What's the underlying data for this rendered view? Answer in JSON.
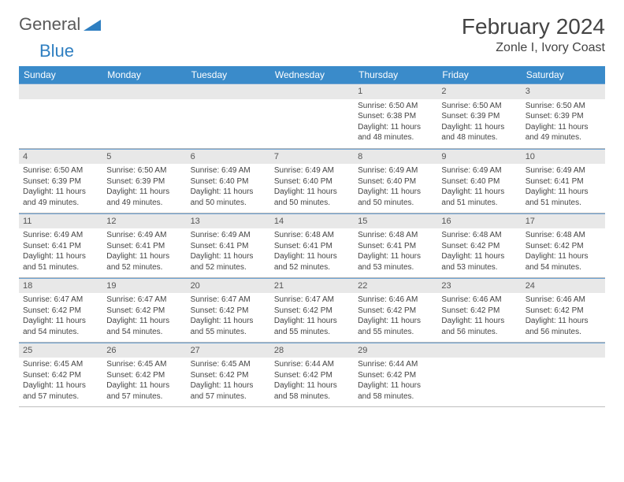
{
  "brand": {
    "part1": "General",
    "part2": "Blue"
  },
  "title": "February 2024",
  "location": "Zonle I, Ivory Coast",
  "colors": {
    "header_bg": "#3a8bca",
    "header_text": "#ffffff",
    "daynum_bg": "#e8e8e8",
    "daynum_border": "#6a9fd0",
    "cell_border": "#bfbfbf",
    "text": "#444444",
    "logo_gray": "#5a5a5a",
    "logo_blue": "#2f7fc1"
  },
  "day_headers": [
    "Sunday",
    "Monday",
    "Tuesday",
    "Wednesday",
    "Thursday",
    "Friday",
    "Saturday"
  ],
  "weeks": [
    [
      null,
      null,
      null,
      null,
      {
        "n": "1",
        "sr": "6:50 AM",
        "ss": "6:38 PM",
        "dl": "11 hours and 48 minutes."
      },
      {
        "n": "2",
        "sr": "6:50 AM",
        "ss": "6:39 PM",
        "dl": "11 hours and 48 minutes."
      },
      {
        "n": "3",
        "sr": "6:50 AM",
        "ss": "6:39 PM",
        "dl": "11 hours and 49 minutes."
      }
    ],
    [
      {
        "n": "4",
        "sr": "6:50 AM",
        "ss": "6:39 PM",
        "dl": "11 hours and 49 minutes."
      },
      {
        "n": "5",
        "sr": "6:50 AM",
        "ss": "6:39 PM",
        "dl": "11 hours and 49 minutes."
      },
      {
        "n": "6",
        "sr": "6:49 AM",
        "ss": "6:40 PM",
        "dl": "11 hours and 50 minutes."
      },
      {
        "n": "7",
        "sr": "6:49 AM",
        "ss": "6:40 PM",
        "dl": "11 hours and 50 minutes."
      },
      {
        "n": "8",
        "sr": "6:49 AM",
        "ss": "6:40 PM",
        "dl": "11 hours and 50 minutes."
      },
      {
        "n": "9",
        "sr": "6:49 AM",
        "ss": "6:40 PM",
        "dl": "11 hours and 51 minutes."
      },
      {
        "n": "10",
        "sr": "6:49 AM",
        "ss": "6:41 PM",
        "dl": "11 hours and 51 minutes."
      }
    ],
    [
      {
        "n": "11",
        "sr": "6:49 AM",
        "ss": "6:41 PM",
        "dl": "11 hours and 51 minutes."
      },
      {
        "n": "12",
        "sr": "6:49 AM",
        "ss": "6:41 PM",
        "dl": "11 hours and 52 minutes."
      },
      {
        "n": "13",
        "sr": "6:49 AM",
        "ss": "6:41 PM",
        "dl": "11 hours and 52 minutes."
      },
      {
        "n": "14",
        "sr": "6:48 AM",
        "ss": "6:41 PM",
        "dl": "11 hours and 52 minutes."
      },
      {
        "n": "15",
        "sr": "6:48 AM",
        "ss": "6:41 PM",
        "dl": "11 hours and 53 minutes."
      },
      {
        "n": "16",
        "sr": "6:48 AM",
        "ss": "6:42 PM",
        "dl": "11 hours and 53 minutes."
      },
      {
        "n": "17",
        "sr": "6:48 AM",
        "ss": "6:42 PM",
        "dl": "11 hours and 54 minutes."
      }
    ],
    [
      {
        "n": "18",
        "sr": "6:47 AM",
        "ss": "6:42 PM",
        "dl": "11 hours and 54 minutes."
      },
      {
        "n": "19",
        "sr": "6:47 AM",
        "ss": "6:42 PM",
        "dl": "11 hours and 54 minutes."
      },
      {
        "n": "20",
        "sr": "6:47 AM",
        "ss": "6:42 PM",
        "dl": "11 hours and 55 minutes."
      },
      {
        "n": "21",
        "sr": "6:47 AM",
        "ss": "6:42 PM",
        "dl": "11 hours and 55 minutes."
      },
      {
        "n": "22",
        "sr": "6:46 AM",
        "ss": "6:42 PM",
        "dl": "11 hours and 55 minutes."
      },
      {
        "n": "23",
        "sr": "6:46 AM",
        "ss": "6:42 PM",
        "dl": "11 hours and 56 minutes."
      },
      {
        "n": "24",
        "sr": "6:46 AM",
        "ss": "6:42 PM",
        "dl": "11 hours and 56 minutes."
      }
    ],
    [
      {
        "n": "25",
        "sr": "6:45 AM",
        "ss": "6:42 PM",
        "dl": "11 hours and 57 minutes."
      },
      {
        "n": "26",
        "sr": "6:45 AM",
        "ss": "6:42 PM",
        "dl": "11 hours and 57 minutes."
      },
      {
        "n": "27",
        "sr": "6:45 AM",
        "ss": "6:42 PM",
        "dl": "11 hours and 57 minutes."
      },
      {
        "n": "28",
        "sr": "6:44 AM",
        "ss": "6:42 PM",
        "dl": "11 hours and 58 minutes."
      },
      {
        "n": "29",
        "sr": "6:44 AM",
        "ss": "6:42 PM",
        "dl": "11 hours and 58 minutes."
      },
      null,
      null
    ]
  ],
  "labels": {
    "sunrise": "Sunrise: ",
    "sunset": "Sunset: ",
    "daylight": "Daylight: "
  }
}
